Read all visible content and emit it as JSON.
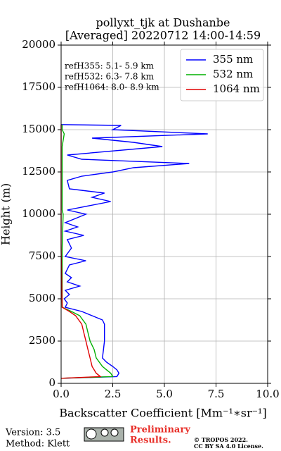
{
  "chart_data": {
    "type": "line",
    "title": "pollyxt_tjk at Dushanbe",
    "subtitle": "[Averaged] 20220712 14:00-14:59",
    "x_label": "Backscatter Coefficient [Mm⁻¹∗sr⁻¹]",
    "y_label": "Height (m)",
    "annotations": [
      "refH355:  5.1- 5.9 km",
      "refH532:  6.3- 7.8 km",
      "refH1064:  8.0- 8.9 km"
    ],
    "xlim": [
      0,
      10
    ],
    "xticks": [
      {
        "value": 0,
        "label": "0.0"
      },
      {
        "value": 2.5,
        "label": "2.5"
      },
      {
        "value": 5,
        "label": "5.0"
      },
      {
        "value": 7.5,
        "label": "7.5"
      },
      {
        "value": 10,
        "label": "10.0"
      }
    ],
    "ylim": [
      0,
      20000
    ],
    "yticks": [
      0,
      2500,
      5000,
      7500,
      10000,
      12500,
      15000,
      17500,
      20000
    ],
    "grid": true,
    "legend": "upper right",
    "series": [
      {
        "name": "355 nm",
        "color": "#0000ff",
        "heights": [
          300,
          400,
          600,
          800,
          1000,
          1250,
          1500,
          2000,
          2500,
          3000,
          3500,
          3750,
          4000,
          4250,
          4500,
          4750,
          5000,
          5250,
          5500,
          5750,
          6000,
          6250,
          6500,
          7000,
          7250,
          7500,
          8000,
          8500,
          8750,
          9000,
          9250,
          9500,
          10000,
          10250,
          10750,
          11000,
          11250,
          11500,
          12000,
          12250,
          12500,
          12750,
          13000,
          13250,
          13500,
          14000,
          14250,
          14500,
          14750,
          15000,
          15250,
          15300
        ],
        "values": [
          0.1,
          2.7,
          2.8,
          2.7,
          2.5,
          2.2,
          2.0,
          2.05,
          2.1,
          2.1,
          2.1,
          2.0,
          1.5,
          1.0,
          0.2,
          0.3,
          0.15,
          0.4,
          0.2,
          0.9,
          0.3,
          0.5,
          0.2,
          0.4,
          1.2,
          0.2,
          0.5,
          0.3,
          1.1,
          0.2,
          0.8,
          0.2,
          1.2,
          0.3,
          2.4,
          1.5,
          2.1,
          0.4,
          0.3,
          1.0,
          2.5,
          3.5,
          6.2,
          1.0,
          0.3,
          4.9,
          3.5,
          1.5,
          7.1,
          2.5,
          2.9,
          0.0
        ]
      },
      {
        "name": "532 nm",
        "color": "#00b000",
        "heights": [
          300,
          400,
          600,
          800,
          1000,
          1500,
          2000,
          2500,
          3000,
          3500,
          4000,
          4250,
          4500,
          6000,
          8000,
          10000,
          10250,
          12000,
          14000,
          14750,
          15000,
          15300
        ],
        "values": [
          0,
          2.5,
          2.4,
          2.2,
          2.0,
          1.7,
          1.6,
          1.4,
          1.3,
          1.2,
          0.9,
          0.5,
          0.05,
          0.05,
          0.05,
          0.1,
          0.05,
          0.05,
          0.05,
          0.15,
          0.05,
          0.05
        ]
      },
      {
        "name": "1064 nm",
        "color": "#e00000",
        "heights": [
          300,
          400,
          600,
          800,
          1000,
          1500,
          2000,
          2500,
          3000,
          3500,
          4000,
          4250,
          4500,
          8000,
          12000,
          15300
        ],
        "values": [
          0,
          1.9,
          1.7,
          1.6,
          1.5,
          1.4,
          1.3,
          1.2,
          1.1,
          1.0,
          0.7,
          0.4,
          0.05,
          0.0,
          0.0,
          0.0
        ]
      }
    ]
  },
  "footer": {
    "version": "Version: 3.5",
    "method": "Method: Klett",
    "preliminary": [
      "Preliminary",
      "Results."
    ],
    "copyright": "© TROPOS 2022.",
    "license": "CC BY SA 4.0 License."
  }
}
